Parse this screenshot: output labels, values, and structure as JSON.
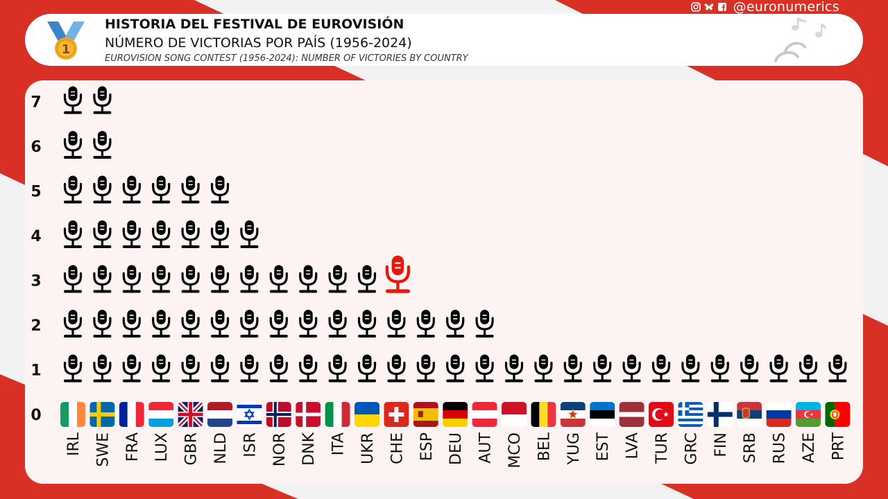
{
  "header": {
    "title": "HISTORIA DEL FESTIVAL DE EUROVISIÓN",
    "subtitle": "NÚMERO DE VICTORIAS POR PAÍS (1956-2024)",
    "subtitle_en": "EUROVISION  SONG CONTEST (1956-2024): NUMBER OF VICTORIES BY COUNTRY",
    "medal_number": "1"
  },
  "social": {
    "icons": [
      "instagram-icon",
      "bluesky-icon",
      "facebook-icon"
    ],
    "handle": "@euronumerics"
  },
  "colors": {
    "background_red": "#d93025",
    "icon_default": "#000000",
    "icon_highlight": "#e8170c",
    "panel": "#fdf3f3"
  },
  "chart_data": {
    "type": "pictograph",
    "title": "",
    "xlabel": "",
    "ylabel": "",
    "ylim": [
      0,
      7
    ],
    "y_ticks": [
      "0",
      "1",
      "2",
      "3",
      "4",
      "5",
      "6",
      "7"
    ],
    "categories": [
      "IRL",
      "SWE",
      "FRA",
      "LUX",
      "GBR",
      "NLD",
      "ISR",
      "NOR",
      "DNK",
      "ITA",
      "UKR",
      "CHE",
      "ESP",
      "DEU",
      "AUT",
      "MCO",
      "BEL",
      "YUG",
      "EST",
      "LVA",
      "TUR",
      "GRC",
      "FIN",
      "SRB",
      "RUS",
      "AZE",
      "PRT"
    ],
    "values": [
      7,
      7,
      5,
      5,
      5,
      5,
      4,
      3,
      3,
      3,
      3,
      3,
      2,
      2,
      2,
      1,
      1,
      1,
      1,
      1,
      1,
      1,
      1,
      1,
      1,
      1,
      1
    ],
    "highlight": {
      "category": "CHE",
      "value": 3
    },
    "unit_icon": "microphone-icon",
    "grid": false
  }
}
